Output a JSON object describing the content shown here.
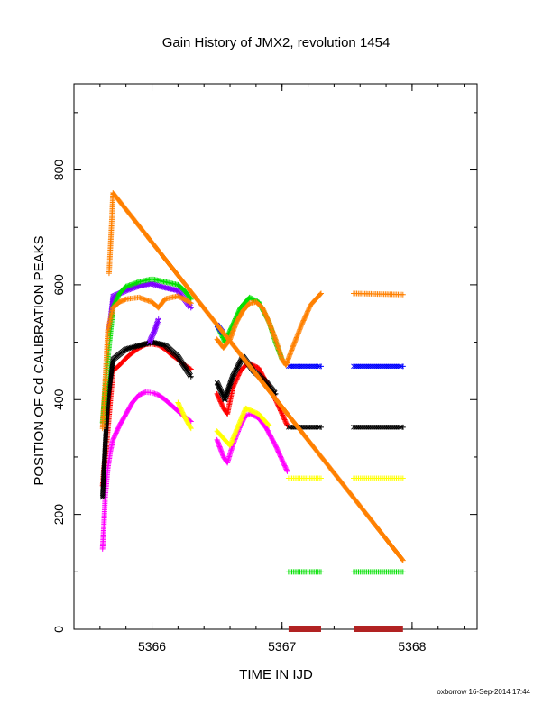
{
  "chart_data": {
    "type": "scatter",
    "title": "Gain History of JMX2, revolution 1454",
    "xlabel": "TIME IN IJD",
    "ylabel": "POSITION OF Cd CALIBRATION PEAKS",
    "xlim": [
      5365.4,
      5368.5
    ],
    "ylim": [
      0,
      950
    ],
    "x_ticks": [
      5366,
      5367,
      5368
    ],
    "y_ticks": [
      0,
      200,
      400,
      600,
      800
    ],
    "grid": false,
    "legend": "none",
    "footer": "oxborrow 16-Sep-2014 17:44",
    "series": [
      {
        "color": "#ff00ff",
        "marker": "plus",
        "segments": [
          [
            [
              5365.62,
              140
            ],
            [
              5365.63,
              180
            ],
            [
              5365.64,
              230
            ],
            [
              5365.66,
              280
            ],
            [
              5365.68,
              310
            ],
            [
              5365.7,
              330
            ],
            [
              5365.75,
              355
            ],
            [
              5365.8,
              375
            ],
            [
              5365.85,
              395
            ],
            [
              5365.9,
              408
            ],
            [
              5365.95,
              413
            ],
            [
              5366.0,
              412
            ],
            [
              5366.05,
              408
            ],
            [
              5366.1,
              400
            ],
            [
              5366.15,
              390
            ],
            [
              5366.2,
              380
            ],
            [
              5366.25,
              370
            ],
            [
              5366.3,
              362
            ]
          ],
          [
            [
              5366.5,
              330
            ],
            [
              5366.55,
              300
            ],
            [
              5366.58,
              290
            ],
            [
              5366.62,
              320
            ],
            [
              5366.68,
              355
            ],
            [
              5366.72,
              372
            ],
            [
              5366.76,
              375
            ],
            [
              5366.82,
              368
            ],
            [
              5366.88,
              350
            ],
            [
              5366.95,
              320
            ],
            [
              5367.0,
              295
            ],
            [
              5367.04,
              275
            ]
          ]
        ]
      },
      {
        "color": "#ffff00",
        "marker": "plus",
        "segments": [
          [
            [
              5366.2,
              395
            ],
            [
              5366.25,
              370
            ],
            [
              5366.3,
              350
            ]
          ],
          [
            [
              5366.5,
              345
            ],
            [
              5366.6,
              320
            ],
            [
              5366.72,
              385
            ],
            [
              5366.82,
              375
            ],
            [
              5366.9,
              355
            ]
          ],
          [
            [
              5367.05,
              263
            ],
            [
              5367.3,
              263
            ]
          ],
          [
            [
              5367.55,
              263
            ],
            [
              5367.93,
              263
            ]
          ]
        ]
      },
      {
        "color": "#ff0000",
        "marker": "plus",
        "segments": [
          [
            [
              5365.62,
              250
            ],
            [
              5365.63,
              280
            ],
            [
              5365.65,
              320
            ],
            [
              5365.7,
              450
            ],
            [
              5365.75,
              460
            ],
            [
              5365.8,
              472
            ],
            [
              5365.85,
              482
            ],
            [
              5365.9,
              490
            ],
            [
              5365.95,
              496
            ],
            [
              5366.0,
              497
            ],
            [
              5366.05,
              495
            ],
            [
              5366.1,
              488
            ],
            [
              5366.15,
              478
            ],
            [
              5366.2,
              470
            ],
            [
              5366.25,
              460
            ],
            [
              5366.3,
              453
            ]
          ],
          [
            [
              5366.5,
              410
            ],
            [
              5366.55,
              385
            ],
            [
              5366.58,
              375
            ],
            [
              5366.62,
              420
            ],
            [
              5366.68,
              450
            ],
            [
              5366.72,
              460
            ],
            [
              5366.76,
              462
            ],
            [
              5366.82,
              455
            ],
            [
              5366.88,
              430
            ],
            [
              5366.95,
              400
            ],
            [
              5367.0,
              375
            ],
            [
              5367.04,
              355
            ]
          ]
        ]
      },
      {
        "color": "#000000",
        "marker": "cross",
        "segments": [
          [
            [
              5365.62,
              230
            ],
            [
              5365.64,
              320
            ],
            [
              5365.66,
              400
            ],
            [
              5365.7,
              470
            ],
            [
              5365.8,
              488
            ],
            [
              5366.0,
              500
            ],
            [
              5366.1,
              495
            ],
            [
              5366.2,
              475
            ],
            [
              5366.3,
              440
            ]
          ],
          [
            [
              5366.5,
              430
            ],
            [
              5366.56,
              400
            ],
            [
              5366.62,
              440
            ],
            [
              5366.7,
              475
            ],
            [
              5366.78,
              450
            ],
            [
              5366.88,
              430
            ],
            [
              5366.95,
              410
            ]
          ],
          [
            [
              5367.05,
              352
            ],
            [
              5367.3,
              352
            ]
          ],
          [
            [
              5367.55,
              352
            ],
            [
              5367.93,
              352
            ]
          ]
        ]
      },
      {
        "color": "#7f00ff",
        "marker": "cross",
        "segments": [
          [
            [
              5365.67,
              520
            ],
            [
              5365.7,
              580
            ],
            [
              5365.8,
              590
            ],
            [
              5365.9,
              598
            ],
            [
              5366.0,
              602
            ],
            [
              5366.05,
              598
            ],
            [
              5366.1,
              595
            ],
            [
              5366.2,
              590
            ],
            [
              5366.3,
              560
            ]
          ],
          [
            [
              5365.98,
              500
            ],
            [
              5366.02,
              520
            ],
            [
              5366.05,
              540
            ]
          ]
        ]
      },
      {
        "color": "#00e000",
        "marker": "plus",
        "segments": [
          [
            [
              5365.62,
              360
            ],
            [
              5365.66,
              470
            ],
            [
              5365.7,
              560
            ],
            [
              5365.75,
              585
            ],
            [
              5365.8,
              597
            ],
            [
              5365.9,
              605
            ],
            [
              5366.0,
              610
            ],
            [
              5366.1,
              605
            ],
            [
              5366.2,
              600
            ],
            [
              5366.25,
              590
            ],
            [
              5366.3,
              575
            ]
          ],
          [
            [
              5366.5,
              530
            ],
            [
              5366.56,
              500
            ],
            [
              5366.6,
              520
            ],
            [
              5366.68,
              560
            ],
            [
              5366.75,
              578
            ],
            [
              5366.82,
              570
            ],
            [
              5366.9,
              535
            ],
            [
              5366.95,
              500
            ],
            [
              5367.0,
              470
            ]
          ],
          [
            [
              5367.05,
              100
            ],
            [
              5367.3,
              100
            ]
          ],
          [
            [
              5367.55,
              100
            ],
            [
              5367.93,
              100
            ]
          ]
        ]
      },
      {
        "color": "#0000ff",
        "marker": "cross",
        "segments": [
          [
            [
              5366.5,
              530
            ],
            [
              5366.55,
              515
            ]
          ],
          [
            [
              5367.05,
              458
            ],
            [
              5367.3,
              458
            ]
          ],
          [
            [
              5367.55,
              458
            ],
            [
              5367.93,
              458
            ]
          ]
        ]
      },
      {
        "color": "#ff8000",
        "marker": "plus",
        "segments": [
          [
            [
              5365.62,
              350
            ],
            [
              5365.64,
              430
            ],
            [
              5365.66,
              520
            ],
            [
              5365.7,
              560
            ],
            [
              5365.75,
              570
            ],
            [
              5365.8,
              575
            ],
            [
              5365.9,
              578
            ],
            [
              5366.0,
              570
            ],
            [
              5366.05,
              560
            ],
            [
              5366.1,
              575
            ],
            [
              5366.15,
              578
            ],
            [
              5366.2,
              580
            ],
            [
              5366.25,
              575
            ],
            [
              5366.3,
              568
            ]
          ],
          [
            [
              5366.5,
              505
            ],
            [
              5366.55,
              490
            ],
            [
              5366.6,
              505
            ],
            [
              5366.65,
              535
            ],
            [
              5366.7,
              555
            ],
            [
              5366.75,
              568
            ],
            [
              5366.8,
              570
            ],
            [
              5366.85,
              560
            ],
            [
              5366.9,
              535
            ],
            [
              5366.95,
              505
            ],
            [
              5367.0,
              470
            ],
            [
              5367.03,
              460
            ],
            [
              5367.08,
              490
            ],
            [
              5367.15,
              530
            ],
            [
              5367.22,
              565
            ],
            [
              5367.3,
              585
            ]
          ],
          [
            [
              5367.55,
              585
            ],
            [
              5367.93,
              583
            ]
          ],
          [
            [
              5365.67,
              620
            ],
            [
              5365.68,
              663
            ],
            [
              5365.69,
              708
            ],
            [
              5365.7,
              760
            ],
            [
              5367.93,
              120
            ]
          ]
        ]
      }
    ],
    "time_bars": {
      "color": "#b22222",
      "ranges": [
        [
          5367.05,
          5367.3
        ],
        [
          5367.55,
          5367.93
        ]
      ]
    }
  }
}
